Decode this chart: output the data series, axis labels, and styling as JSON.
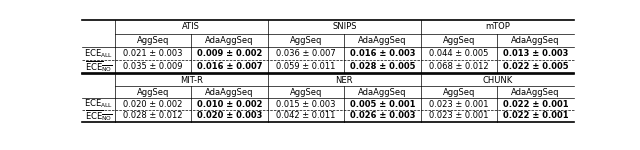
{
  "top_headers": [
    "ATIS",
    "SNIPS",
    "mTOP"
  ],
  "bot_headers": [
    "MIT-R",
    "NER",
    "CHUNK"
  ],
  "top_data": {
    "ATIS": {
      "ECE_ALL": [
        "0.021 ± 0.003",
        "0.009 ± 0.002"
      ],
      "ECE_NO": [
        "0.035 ± 0.009",
        "0.016 ± 0.007"
      ]
    },
    "SNIPS": {
      "ECE_ALL": [
        "0.036 ± 0.007",
        "0.016 ± 0.003"
      ],
      "ECE_NO": [
        "0.059 ± 0.011",
        "0.028 ± 0.005"
      ]
    },
    "mTOP": {
      "ECE_ALL": [
        "0.044 ± 0.005",
        "0.013 ± 0.003"
      ],
      "ECE_NO": [
        "0.068 ± 0.012",
        "0.022 ± 0.005"
      ]
    }
  },
  "bot_data": {
    "MIT-R": {
      "ECE_ALL": [
        "0.020 ± 0.002",
        "0.010 ± 0.002"
      ],
      "ECE_NO": [
        "0.028 ± 0.012",
        "0.020 ± 0.003"
      ]
    },
    "NER": {
      "ECE_ALL": [
        "0.015 ± 0.003",
        "0.005 ± 0.001"
      ],
      "ECE_NO": [
        "0.042 ± 0.011",
        "0.026 ± 0.003"
      ]
    },
    "CHUNK": {
      "ECE_ALL": [
        "0.023 ± 0.001",
        "0.022 ± 0.001"
      ],
      "ECE_NO": [
        "0.023 ± 0.001",
        "0.022 ± 0.001"
      ]
    }
  },
  "bg_color": "white",
  "font_size": 6.0
}
